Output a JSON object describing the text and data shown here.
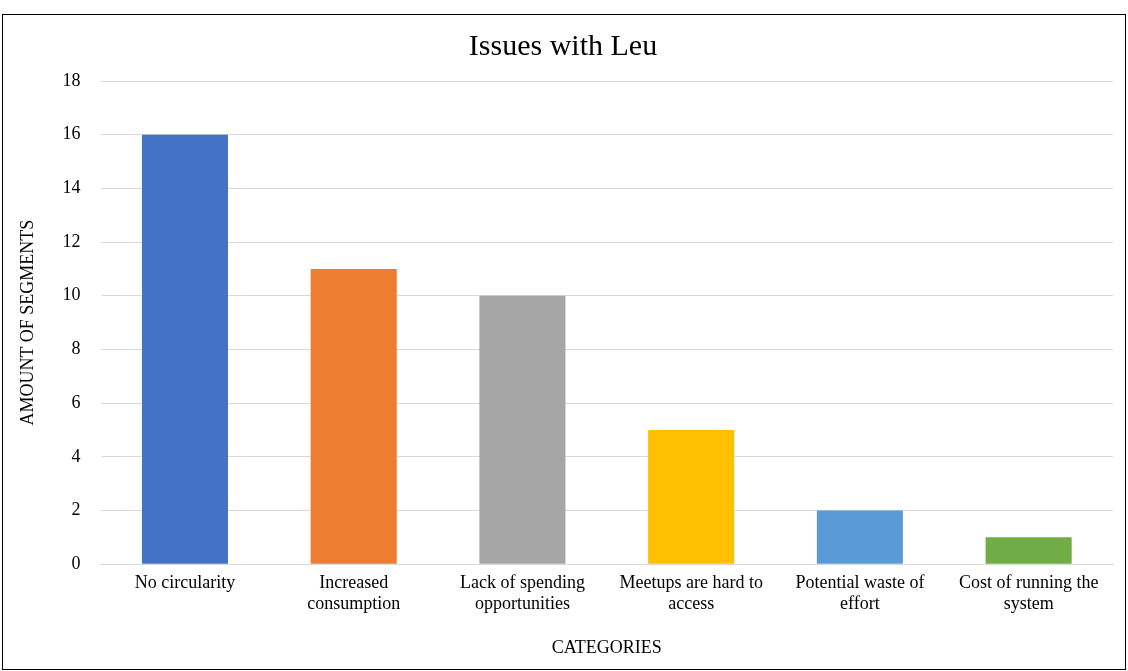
{
  "chart_data": {
    "type": "bar",
    "title": "Issues with Leu",
    "xlabel": "CATEGORIES",
    "ylabel": "AMOUNT OF SEGMENTS",
    "categories": [
      "No circularity",
      "Increased consumption",
      "Lack of spending opportunities",
      "Meetups are hard to access",
      "Potential waste of effort",
      "Cost of running the system"
    ],
    "values": [
      16,
      11,
      10,
      5,
      2,
      1
    ],
    "colors": [
      "#4472c4",
      "#ed7d31",
      "#a5a5a5",
      "#ffc000",
      "#5b9bd5",
      "#70ad47"
    ],
    "ylim": [
      0,
      18
    ],
    "yticks": [
      0,
      2,
      4,
      6,
      8,
      10,
      12,
      14,
      16,
      18
    ],
    "grid": "y",
    "legend": false
  }
}
